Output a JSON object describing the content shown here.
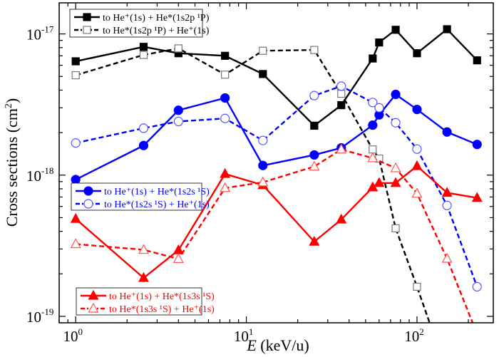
{
  "chart_data": {
    "type": "line",
    "xscale": "log",
    "yscale": "log",
    "xlabel_italic": "E",
    "xlabel_rest": " (keV/u)",
    "ylabel": "Cross sections (cm",
    "ylabel_sup": "2",
    "ylabel_close": ")",
    "xlim": [
      0.8,
      280
    ],
    "ylim": [
      9e-20,
      1.66e-17
    ],
    "xticks": [
      {
        "value": 1,
        "base": "10",
        "exp": "0"
      },
      {
        "value": 10,
        "base": "10",
        "exp": "1"
      },
      {
        "value": 100,
        "base": "10",
        "exp": "2"
      }
    ],
    "yticks": [
      {
        "value": 1e-19,
        "base": "10",
        "exp": "-19"
      },
      {
        "value": 1e-18,
        "base": "10",
        "exp": "-18"
      },
      {
        "value": 1e-17,
        "base": "10",
        "exp": "-17"
      }
    ],
    "grid": false,
    "series": [
      {
        "name": "to He⁺(1s) + He*(1s2p ¹P)",
        "color": "#000000",
        "dashed": false,
        "marker": "square-filled",
        "legend": 0,
        "x": [
          1,
          2.5,
          4,
          7.5,
          12.5,
          25,
          36,
          55,
          60,
          75,
          100,
          150,
          225
        ],
        "y": [
          6.4e-18,
          8.1e-18,
          7.3e-18,
          7e-18,
          5.2e-18,
          2.24e-18,
          3.13e-18,
          6.7e-18,
          8.7e-18,
          1.07e-17,
          7.3e-18,
          1.08e-17,
          6.5e-18
        ]
      },
      {
        "name": "to He*(1s2p ¹P) + He⁺(1s)",
        "color": "#000000",
        "markerColor": "#777777",
        "dashed": true,
        "marker": "square-open",
        "legend": 0,
        "x": [
          1,
          2.5,
          4,
          7.5,
          12.5,
          25,
          36,
          55,
          60,
          75,
          100,
          150
        ],
        "y": [
          5.1e-18,
          7.1e-18,
          7.9e-18,
          5.15e-18,
          7.6e-18,
          7.7e-18,
          3.77e-18,
          1.52e-18,
          1.31e-18,
          4.2e-19,
          1.62e-19,
          4e-20
        ]
      },
      {
        "name": "to He⁺(1s) + He*(1s2s ¹S)",
        "color": "#0000ff",
        "dashed": false,
        "marker": "circle-filled",
        "legend": 1,
        "x": [
          1,
          2.5,
          4,
          7.5,
          12.5,
          25,
          36,
          55,
          60,
          75,
          100,
          150,
          225
        ],
        "y": [
          9.3e-19,
          1.62e-18,
          2.88e-18,
          3.52e-18,
          1.17e-18,
          1.39e-18,
          1.56e-18,
          2.26e-18,
          2.67e-18,
          3.73e-18,
          2.92e-18,
          2.02e-18,
          1.65e-18
        ]
      },
      {
        "name": "to He*(1s2s ¹S) + He⁺(1s)",
        "color": "#0000ff",
        "markerColor": "#5555ff",
        "dashed": true,
        "marker": "circle-open",
        "legend": 1,
        "x": [
          1,
          2.5,
          4,
          7.5,
          12.5,
          25,
          36,
          55,
          60,
          75,
          100,
          150,
          225
        ],
        "y": [
          1.69e-18,
          2.15e-18,
          2.4e-18,
          2.52e-18,
          1.76e-18,
          3.66e-18,
          4.27e-18,
          3.27e-18,
          3e-18,
          2.35e-18,
          1.53e-18,
          6.1e-19,
          1.62e-19
        ]
      },
      {
        "name": "to He⁺(1s) + He*(1s3s ¹S)",
        "color": "#ff0000",
        "dashed": false,
        "marker": "triangle-filled",
        "legend": 2,
        "x": [
          1,
          2.5,
          4,
          7.5,
          12.5,
          25,
          36,
          55,
          60,
          75,
          100,
          150,
          225
        ],
        "y": [
          4.9e-19,
          1.87e-19,
          2.94e-19,
          1.02e-18,
          8.5e-19,
          3.38e-19,
          4.85e-19,
          8.2e-19,
          8.8e-19,
          8.8e-19,
          1.16e-18,
          7.5e-19,
          6.9e-19
        ]
      },
      {
        "name": "to He*(1s3s ¹S) + He⁺(1s)",
        "color": "#ff0000",
        "markerColor": "#ff5555",
        "dashed": true,
        "marker": "triangle-open",
        "legend": 2,
        "x": [
          1,
          2.5,
          4,
          7.5,
          12.5,
          25,
          36,
          55,
          75,
          100,
          150,
          225
        ],
        "y": [
          3.25e-19,
          2.96e-19,
          2.55e-19,
          8.1e-19,
          8.9e-19,
          1.15e-18,
          1.52e-18,
          1.32e-18,
          1.12e-18,
          7.4e-19,
          2.56e-19,
          7.5e-20
        ]
      }
    ]
  }
}
